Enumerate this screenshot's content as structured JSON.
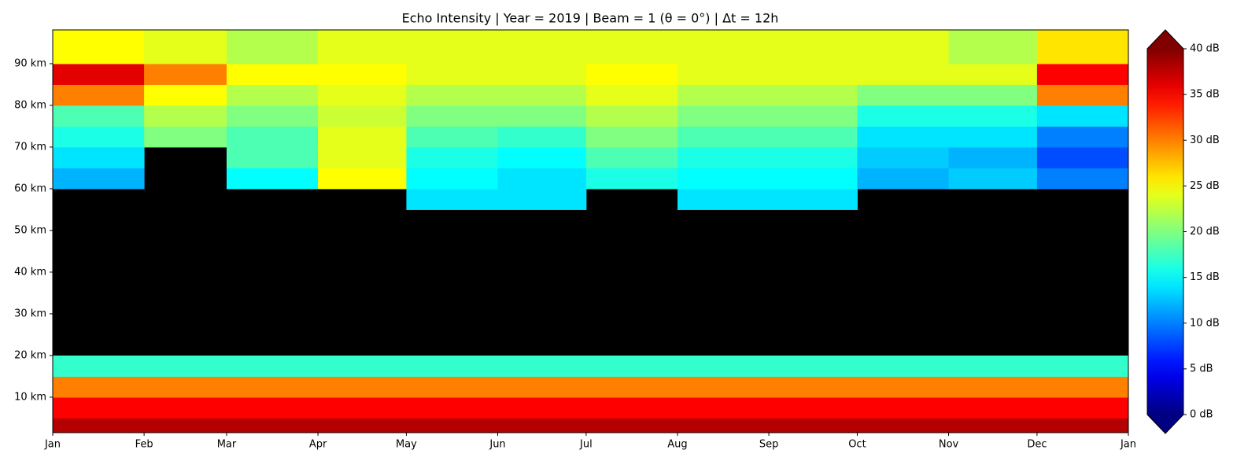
{
  "chart_data": {
    "type": "heatmap",
    "title": "Echo Intensity | Year = 2019 | Beam = 1 (θ = 0°) | Δt = 12h",
    "xlim": [
      0,
      365
    ],
    "xticks": [
      {
        "value": 0,
        "label": "Jan"
      },
      {
        "value": 31,
        "label": "Feb"
      },
      {
        "value": 59,
        "label": "Mar"
      },
      {
        "value": 90,
        "label": "Apr"
      },
      {
        "value": 120,
        "label": "May"
      },
      {
        "value": 151,
        "label": "Jun"
      },
      {
        "value": 181,
        "label": "Jul"
      },
      {
        "value": 212,
        "label": "Aug"
      },
      {
        "value": 243,
        "label": "Sep"
      },
      {
        "value": 273,
        "label": "Oct"
      },
      {
        "value": 304,
        "label": "Nov"
      },
      {
        "value": 334,
        "label": "Dec"
      },
      {
        "value": 365,
        "label": "Jan"
      }
    ],
    "ylim": [
      1.5,
      98.1
    ],
    "yticks": [
      {
        "value": 10,
        "label": "10 km"
      },
      {
        "value": 20,
        "label": "20 km"
      },
      {
        "value": 30,
        "label": "30 km"
      },
      {
        "value": 40,
        "label": "40 km"
      },
      {
        "value": 50,
        "label": "50 km"
      },
      {
        "value": 60,
        "label": "60 km"
      },
      {
        "value": 70,
        "label": "70 km"
      },
      {
        "value": 80,
        "label": "80 km"
      },
      {
        "value": 90,
        "label": "90 km"
      }
    ],
    "x_edges": [
      0,
      31,
      59,
      90,
      120,
      151,
      181,
      212,
      243,
      273,
      304,
      334,
      365
    ],
    "y_edges": [
      1.5,
      5,
      10,
      15,
      20,
      50,
      55,
      60,
      65,
      70,
      75,
      80,
      85,
      90,
      98.1
    ],
    "z": [
      [
        38,
        38,
        38,
        38,
        38,
        38,
        38,
        38,
        38,
        38,
        38,
        38
      ],
      [
        35,
        35,
        35,
        35,
        35,
        35,
        35,
        35,
        35,
        35,
        35,
        35
      ],
      [
        30,
        30,
        30,
        30,
        30,
        30,
        30,
        30,
        30,
        30,
        30,
        30
      ],
      [
        17,
        17,
        17,
        17,
        17,
        17,
        17,
        17,
        17,
        17,
        17,
        17
      ],
      [
        null,
        null,
        null,
        null,
        null,
        null,
        null,
        null,
        null,
        null,
        null,
        null
      ],
      [
        null,
        null,
        null,
        null,
        null,
        null,
        null,
        null,
        null,
        null,
        null,
        null
      ],
      [
        null,
        null,
        null,
        null,
        14,
        14,
        null,
        14,
        14,
        null,
        null,
        null
      ],
      [
        12,
        null,
        15,
        25,
        15,
        14,
        16,
        15,
        15,
        12,
        13,
        10
      ],
      [
        14,
        null,
        18,
        24,
        16,
        15,
        18,
        16,
        16,
        13,
        12,
        8
      ],
      [
        16,
        20,
        18,
        24,
        18,
        17,
        20,
        18,
        18,
        14,
        14,
        10
      ],
      [
        18,
        22,
        20,
        23,
        20,
        20,
        22,
        20,
        20,
        16,
        16,
        14
      ],
      [
        30,
        25,
        22,
        24,
        22,
        22,
        24,
        22,
        22,
        20,
        20,
        30
      ],
      [
        36,
        30,
        25,
        25,
        24,
        24,
        25,
        24,
        24,
        24,
        24,
        35
      ],
      [
        25,
        24,
        22,
        24,
        24,
        24,
        24,
        24,
        24,
        24,
        22,
        26
      ]
    ],
    "colormap": "jet",
    "clim": [
      0,
      40
    ],
    "cticks": [
      {
        "value": 0,
        "label": "0 dB"
      },
      {
        "value": 5,
        "label": "5 dB"
      },
      {
        "value": 10,
        "label": "10 dB"
      },
      {
        "value": 15,
        "label": "15 dB"
      },
      {
        "value": 20,
        "label": "20 dB"
      },
      {
        "value": 25,
        "label": "25 dB"
      },
      {
        "value": 30,
        "label": "30 dB"
      },
      {
        "value": 35,
        "label": "35 dB"
      },
      {
        "value": 40,
        "label": "40 dB"
      }
    ],
    "background": "#000000"
  }
}
